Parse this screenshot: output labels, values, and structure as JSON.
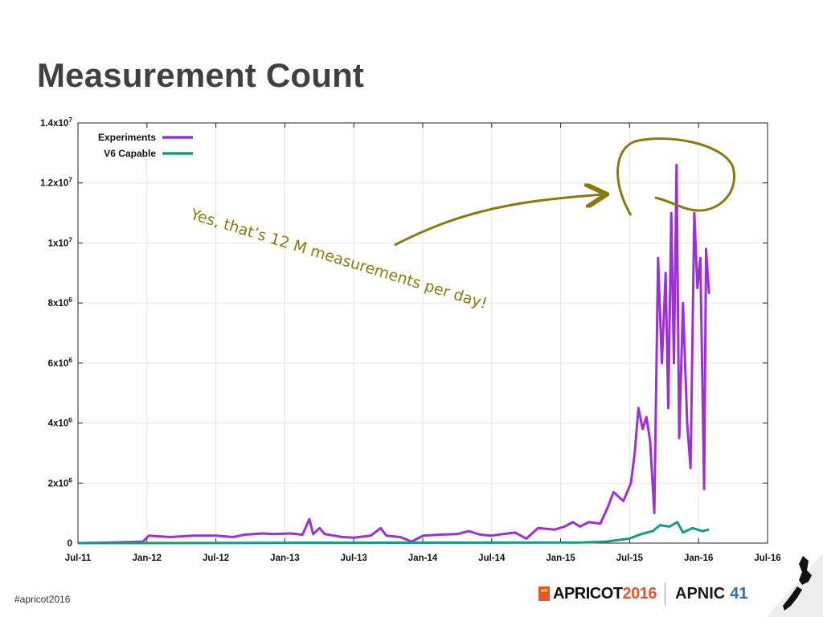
{
  "title": "Measurement Count",
  "footer": {
    "hashtag": "#apricot2016",
    "apricot_word": "APRICOT",
    "apricot_year": "2016",
    "apnic_word": "APNIC",
    "apnic_number": "41"
  },
  "annotation": "Yes, that’s 12 M measurements per day!",
  "colors": {
    "experiments": "#9b30d9",
    "v6_capable": "#0f9e85",
    "annotation": "#8a7a0c"
  },
  "chart_data": {
    "type": "line",
    "title": "",
    "xlabel": "",
    "ylabel": "",
    "legend_position": "top-left",
    "grid": true,
    "xlim": [
      "2011-07-01",
      "2016-07-01"
    ],
    "ylim": [
      0,
      14000000
    ],
    "x_ticks": [
      "Jul-11",
      "Jan-12",
      "Jul-12",
      "Jan-13",
      "Jul-13",
      "Jan-14",
      "Jul-14",
      "Jan-15",
      "Jul-15",
      "Jan-16",
      "Jul-16"
    ],
    "y_ticks": [
      {
        "value": 0,
        "base": "0",
        "exp": ""
      },
      {
        "value": 2000000,
        "base": "2x10",
        "exp": "6"
      },
      {
        "value": 4000000,
        "base": "4x10",
        "exp": "6"
      },
      {
        "value": 6000000,
        "base": "6x10",
        "exp": "6"
      },
      {
        "value": 8000000,
        "base": "8x10",
        "exp": "6"
      },
      {
        "value": 10000000,
        "base": "1x10",
        "exp": "7"
      },
      {
        "value": 12000000,
        "base": "1.2x10",
        "exp": "7"
      },
      {
        "value": 14000000,
        "base": "1.4x10",
        "exp": "7"
      }
    ],
    "series": [
      {
        "name": "Experiments",
        "points": [
          [
            "2011-07-01",
            0
          ],
          [
            "2011-10-01",
            20000
          ],
          [
            "2011-12-20",
            50000
          ],
          [
            "2012-01-05",
            250000
          ],
          [
            "2012-03-01",
            200000
          ],
          [
            "2012-05-01",
            250000
          ],
          [
            "2012-07-01",
            250000
          ],
          [
            "2012-08-15",
            200000
          ],
          [
            "2012-09-15",
            280000
          ],
          [
            "2012-11-01",
            320000
          ],
          [
            "2012-12-01",
            300000
          ],
          [
            "2013-01-15",
            320000
          ],
          [
            "2013-02-15",
            280000
          ],
          [
            "2013-03-05",
            800000
          ],
          [
            "2013-03-15",
            300000
          ],
          [
            "2013-04-01",
            500000
          ],
          [
            "2013-04-15",
            300000
          ],
          [
            "2013-06-01",
            200000
          ],
          [
            "2013-07-01",
            180000
          ],
          [
            "2013-08-15",
            250000
          ],
          [
            "2013-09-10",
            500000
          ],
          [
            "2013-09-25",
            250000
          ],
          [
            "2013-11-01",
            200000
          ],
          [
            "2013-12-01",
            50000
          ],
          [
            "2014-01-01",
            250000
          ],
          [
            "2014-02-15",
            280000
          ],
          [
            "2014-04-01",
            300000
          ],
          [
            "2014-05-01",
            400000
          ],
          [
            "2014-06-01",
            280000
          ],
          [
            "2014-07-01",
            250000
          ],
          [
            "2014-09-01",
            350000
          ],
          [
            "2014-10-01",
            150000
          ],
          [
            "2014-11-01",
            500000
          ],
          [
            "2014-12-15",
            450000
          ],
          [
            "2015-01-10",
            550000
          ],
          [
            "2015-02-01",
            700000
          ],
          [
            "2015-02-20",
            550000
          ],
          [
            "2015-03-15",
            700000
          ],
          [
            "2015-04-15",
            650000
          ],
          [
            "2015-05-05",
            1200000
          ],
          [
            "2015-05-20",
            1700000
          ],
          [
            "2015-06-15",
            1400000
          ],
          [
            "2015-07-05",
            2000000
          ],
          [
            "2015-07-15",
            3000000
          ],
          [
            "2015-07-25",
            4500000
          ],
          [
            "2015-08-05",
            3800000
          ],
          [
            "2015-08-15",
            4200000
          ],
          [
            "2015-08-25",
            3400000
          ],
          [
            "2015-09-05",
            1000000
          ],
          [
            "2015-09-15",
            9500000
          ],
          [
            "2015-09-25",
            6000000
          ],
          [
            "2015-10-05",
            9000000
          ],
          [
            "2015-10-12",
            4500000
          ],
          [
            "2015-10-20",
            11000000
          ],
          [
            "2015-10-27",
            6000000
          ],
          [
            "2015-11-03",
            12600000
          ],
          [
            "2015-11-10",
            3500000
          ],
          [
            "2015-11-20",
            8000000
          ],
          [
            "2015-12-01",
            4000000
          ],
          [
            "2015-12-10",
            2500000
          ],
          [
            "2015-12-20",
            11000000
          ],
          [
            "2015-12-28",
            8500000
          ],
          [
            "2016-01-05",
            9500000
          ],
          [
            "2016-01-15",
            1800000
          ],
          [
            "2016-01-20",
            9800000
          ],
          [
            "2016-01-28",
            8300000
          ]
        ]
      },
      {
        "name": "V6 Capable",
        "points": [
          [
            "2011-07-01",
            0
          ],
          [
            "2015-03-01",
            20000
          ],
          [
            "2015-05-01",
            50000
          ],
          [
            "2015-07-01",
            150000
          ],
          [
            "2015-08-01",
            300000
          ],
          [
            "2015-09-01",
            400000
          ],
          [
            "2015-09-20",
            600000
          ],
          [
            "2015-10-15",
            550000
          ],
          [
            "2015-11-05",
            700000
          ],
          [
            "2015-11-20",
            350000
          ],
          [
            "2015-12-15",
            500000
          ],
          [
            "2016-01-10",
            400000
          ],
          [
            "2016-01-28",
            450000
          ]
        ]
      }
    ]
  }
}
